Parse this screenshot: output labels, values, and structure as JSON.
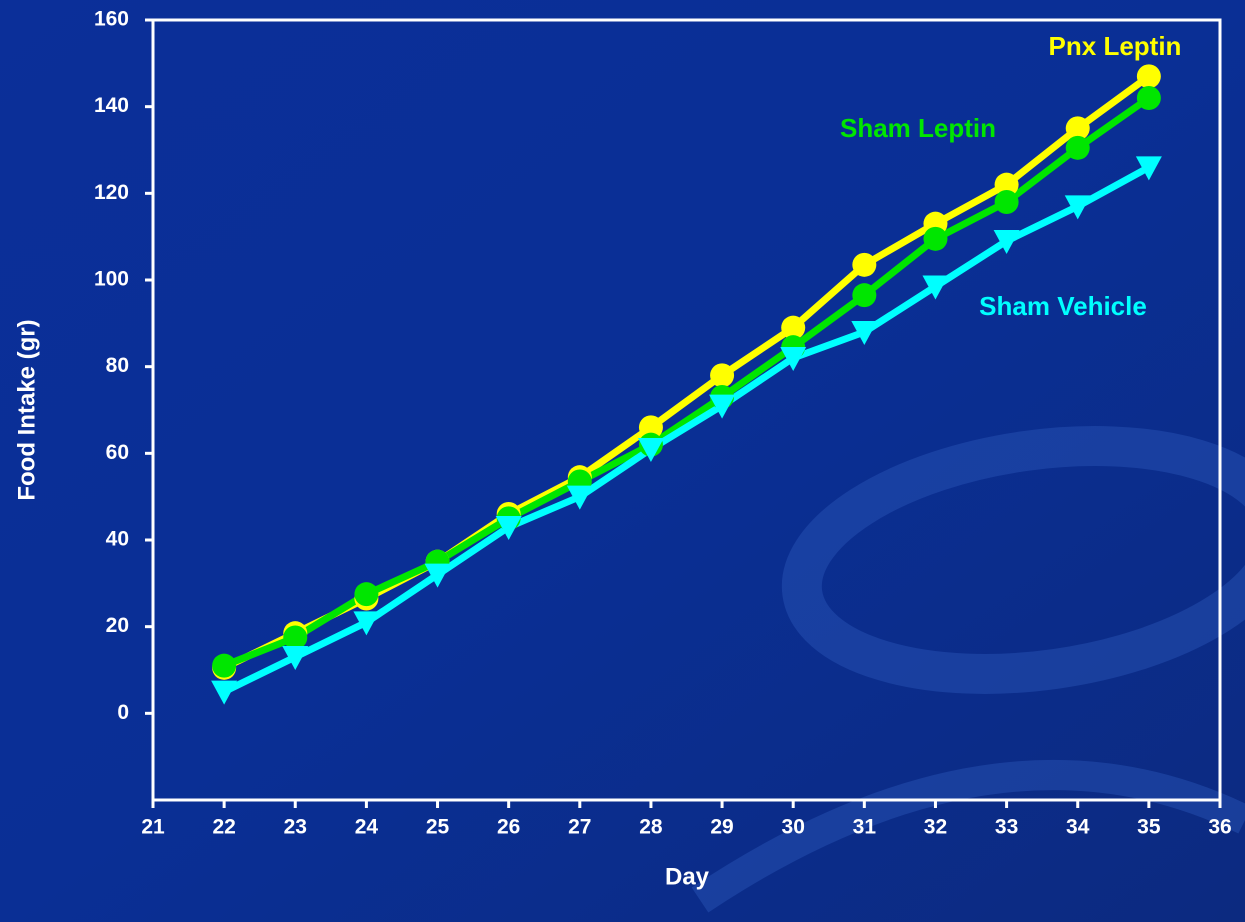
{
  "chart_data": {
    "type": "line",
    "x_label": "Day",
    "y_label": "Food Intake (gr)",
    "xlim": [
      21,
      36
    ],
    "xticks": [
      21,
      22,
      23,
      24,
      25,
      26,
      27,
      28,
      29,
      30,
      31,
      32,
      33,
      34,
      35,
      36
    ],
    "ylim": [
      -20,
      160
    ],
    "yticks": [
      0,
      20,
      40,
      60,
      80,
      100,
      120,
      140,
      160
    ],
    "x": [
      22,
      23,
      24,
      25,
      26,
      27,
      28,
      29,
      30,
      31,
      32,
      33,
      34,
      35
    ],
    "series": [
      {
        "name": "Pnx Leptin",
        "color": "#ffff00",
        "marker": "circle",
        "values": [
          10.5,
          18.5,
          26.5,
          35,
          46,
          54.5,
          66,
          78,
          89,
          103.5,
          113,
          122,
          135,
          147
        ]
      },
      {
        "name": "Sham Leptin",
        "color": "#00e600",
        "marker": "circle",
        "values": [
          11,
          17.5,
          27.5,
          35,
          45,
          53.5,
          62,
          73,
          84.5,
          96.5,
          109.5,
          118,
          130.5,
          142
        ]
      },
      {
        "name": "Sham Vehicle",
        "color": "#00ffff",
        "marker": "triangle-down",
        "values": [
          5,
          13,
          21,
          32,
          43,
          50,
          61,
          71,
          82,
          88,
          98.5,
          109,
          117,
          126
        ]
      }
    ]
  }
}
